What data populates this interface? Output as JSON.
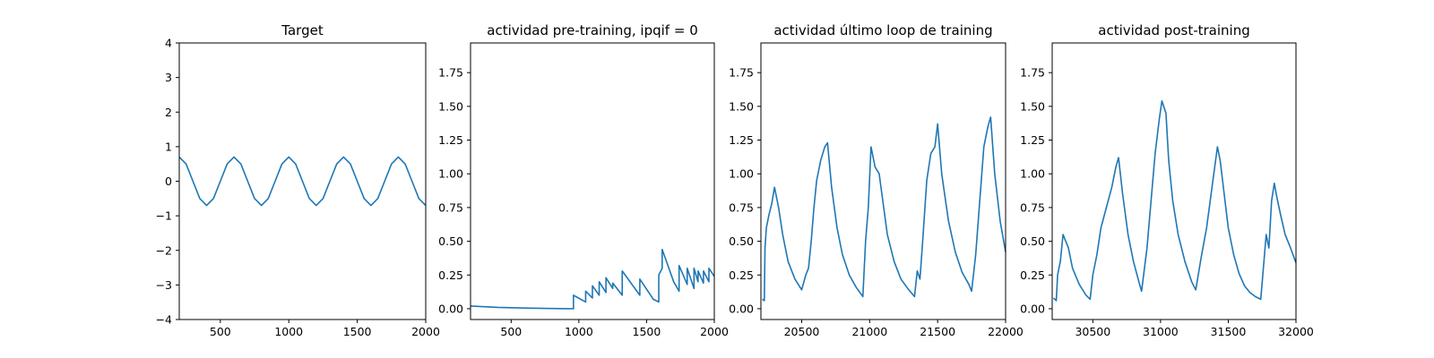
{
  "chart_data": [
    {
      "type": "line",
      "title": "Target",
      "xlim": [
        200,
        2000
      ],
      "ylim": [
        -4,
        4
      ],
      "xticks": [
        500,
        1000,
        1500,
        2000
      ],
      "yticks": [
        -4,
        -3,
        -2,
        -1,
        0,
        1,
        2,
        3,
        4
      ],
      "xtick_labels": [
        "500",
        "1000",
        "1500",
        "2000"
      ],
      "ytick_labels": [
        "−4",
        "−3",
        "−2",
        "−1",
        "0",
        "1",
        "2",
        "3",
        "4"
      ],
      "color": "#1f77b4",
      "x": [
        200,
        250,
        300,
        350,
        400,
        450,
        500,
        550,
        600,
        650,
        700,
        750,
        800,
        850,
        900,
        950,
        1000,
        1050,
        1100,
        1150,
        1200,
        1250,
        1300,
        1350,
        1400,
        1450,
        1500,
        1550,
        1600,
        1650,
        1700,
        1750,
        1800,
        1850,
        1900,
        1950,
        2000
      ],
      "y": [
        0.7,
        0.5,
        0.0,
        -0.5,
        -0.7,
        -0.5,
        0.0,
        0.5,
        0.7,
        0.5,
        0.0,
        -0.5,
        -0.7,
        -0.5,
        0.0,
        0.5,
        0.7,
        0.5,
        0.0,
        -0.5,
        -0.7,
        -0.5,
        0.0,
        0.5,
        0.7,
        0.5,
        0.0,
        -0.5,
        -0.7,
        -0.5,
        0.0,
        0.5,
        0.7,
        0.5,
        0.0,
        -0.5,
        -0.7
      ]
    },
    {
      "type": "line",
      "title": "actividad pre-training, ipqif = 0",
      "xlim": [
        200,
        2000
      ],
      "ylim": [
        -0.08,
        1.97
      ],
      "xticks": [
        500,
        1000,
        1500,
        2000
      ],
      "yticks": [
        0.0,
        0.25,
        0.5,
        0.75,
        1.0,
        1.25,
        1.5,
        1.75
      ],
      "xtick_labels": [
        "500",
        "1000",
        "1500",
        "2000"
      ],
      "ytick_labels": [
        "0.00",
        "0.25",
        "0.50",
        "0.75",
        "1.00",
        "1.25",
        "1.50",
        "1.75"
      ],
      "color": "#1f77b4",
      "x": [
        200,
        400,
        600,
        800,
        960,
        960,
        1050,
        1050,
        1100,
        1100,
        1150,
        1150,
        1200,
        1200,
        1250,
        1250,
        1320,
        1320,
        1450,
        1450,
        1550,
        1590,
        1590,
        1615,
        1615,
        1700,
        1740,
        1740,
        1800,
        1800,
        1850,
        1850,
        1880,
        1880,
        1920,
        1920,
        1960,
        1960,
        2000
      ],
      "y": [
        0.02,
        0.01,
        0.005,
        0.002,
        0.0,
        0.1,
        0.05,
        0.13,
        0.08,
        0.17,
        0.1,
        0.2,
        0.12,
        0.23,
        0.15,
        0.19,
        0.1,
        0.28,
        0.1,
        0.22,
        0.07,
        0.05,
        0.25,
        0.3,
        0.44,
        0.2,
        0.13,
        0.32,
        0.18,
        0.3,
        0.15,
        0.3,
        0.2,
        0.28,
        0.19,
        0.28,
        0.2,
        0.3,
        0.24
      ]
    },
    {
      "type": "line",
      "title": "actividad último loop de training",
      "xlim": [
        20200,
        22000
      ],
      "ylim": [
        -0.08,
        1.97
      ],
      "xticks": [
        20500,
        21000,
        21500,
        22000
      ],
      "yticks": [
        0.0,
        0.25,
        0.5,
        0.75,
        1.0,
        1.25,
        1.5,
        1.75
      ],
      "xtick_labels": [
        "20500",
        "21000",
        "21500",
        "22000"
      ],
      "ytick_labels": [
        "0.00",
        "0.25",
        "0.50",
        "0.75",
        "1.00",
        "1.25",
        "1.50",
        "1.75"
      ],
      "color": "#1f77b4",
      "x": [
        20210,
        20225,
        20230,
        20240,
        20260,
        20280,
        20300,
        20330,
        20360,
        20400,
        20450,
        20500,
        20530,
        20550,
        20570,
        20590,
        20610,
        20640,
        20670,
        20690,
        20720,
        20760,
        20800,
        20850,
        20900,
        20950,
        20970,
        20990,
        21010,
        21040,
        21070,
        21090,
        21130,
        21180,
        21230,
        21280,
        21330,
        21350,
        21370,
        21390,
        21420,
        21450,
        21480,
        21500,
        21530,
        21580,
        21630,
        21680,
        21730,
        21750,
        21780,
        21810,
        21840,
        21870,
        21890,
        21920,
        21960,
        22000
      ],
      "y": [
        0.07,
        0.06,
        0.45,
        0.6,
        0.7,
        0.78,
        0.9,
        0.75,
        0.55,
        0.35,
        0.22,
        0.14,
        0.25,
        0.3,
        0.5,
        0.75,
        0.95,
        1.1,
        1.2,
        1.23,
        0.9,
        0.6,
        0.4,
        0.25,
        0.16,
        0.09,
        0.5,
        0.75,
        1.2,
        1.05,
        1.0,
        0.85,
        0.55,
        0.35,
        0.22,
        0.15,
        0.09,
        0.28,
        0.22,
        0.5,
        0.95,
        1.15,
        1.2,
        1.37,
        1.0,
        0.65,
        0.42,
        0.27,
        0.18,
        0.13,
        0.4,
        0.8,
        1.2,
        1.35,
        1.42,
        1.0,
        0.65,
        0.42
      ]
    },
    {
      "type": "line",
      "title": "actividad post-training",
      "xlim": [
        30200,
        32000
      ],
      "ylim": [
        -0.08,
        1.97
      ],
      "xticks": [
        30500,
        31000,
        31500,
        32000
      ],
      "yticks": [
        0.0,
        0.25,
        0.5,
        0.75,
        1.0,
        1.25,
        1.5,
        1.75
      ],
      "xtick_labels": [
        "30500",
        "31000",
        "31500",
        "32000"
      ],
      "ytick_labels": [
        "0.00",
        "0.25",
        "0.50",
        "0.75",
        "1.00",
        "1.25",
        "1.50",
        "1.75"
      ],
      "color": "#1f77b4",
      "x": [
        30210,
        30230,
        30240,
        30260,
        30280,
        30300,
        30320,
        30350,
        30400,
        30450,
        30480,
        30500,
        30530,
        30560,
        30600,
        30640,
        30670,
        30690,
        30720,
        30760,
        30800,
        30840,
        30860,
        30900,
        30930,
        30960,
        30990,
        31010,
        31040,
        31060,
        31090,
        31130,
        31180,
        31230,
        31260,
        31300,
        31340,
        31380,
        31420,
        31440,
        31470,
        31500,
        31540,
        31580,
        31620,
        31660,
        31700,
        31740,
        31780,
        31800,
        31820,
        31840,
        31860,
        31890,
        31920,
        31960,
        32000
      ],
      "y": [
        0.08,
        0.06,
        0.25,
        0.35,
        0.55,
        0.5,
        0.45,
        0.3,
        0.18,
        0.1,
        0.07,
        0.25,
        0.4,
        0.6,
        0.75,
        0.9,
        1.05,
        1.12,
        0.85,
        0.55,
        0.35,
        0.2,
        0.13,
        0.45,
        0.8,
        1.15,
        1.4,
        1.54,
        1.45,
        1.1,
        0.8,
        0.55,
        0.35,
        0.2,
        0.14,
        0.38,
        0.6,
        0.9,
        1.2,
        1.1,
        0.85,
        0.6,
        0.4,
        0.26,
        0.17,
        0.12,
        0.09,
        0.07,
        0.55,
        0.45,
        0.8,
        0.93,
        0.82,
        0.68,
        0.55,
        0.45,
        0.34
      ]
    }
  ]
}
